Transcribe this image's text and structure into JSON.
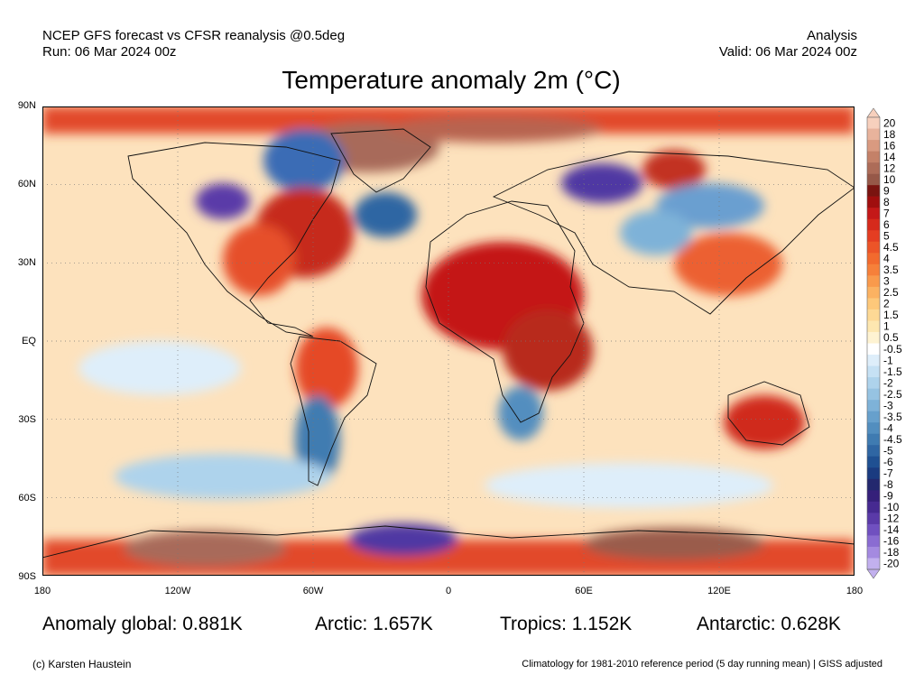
{
  "header": {
    "model_line": "NCEP GFS forecast vs CFSR reanalysis @0.5deg",
    "run_line": "Run: 06 Mar 2024 00z",
    "type_line": "Analysis",
    "valid_line": "Valid: 06 Mar 2024 00z"
  },
  "title": "Temperature anomaly 2m (°C)",
  "axes": {
    "lat_labels": [
      "90N",
      "60N",
      "30N",
      "EQ",
      "30S",
      "60S",
      "90S"
    ],
    "lon_labels": [
      "180",
      "120W",
      "60W",
      "0",
      "60E",
      "120E",
      "180"
    ]
  },
  "colorbar": {
    "levels": [
      "20",
      "18",
      "16",
      "14",
      "12",
      "10",
      "9",
      "8",
      "7",
      "6",
      "5",
      "4.5",
      "4",
      "3.5",
      "3",
      "2.5",
      "2",
      "1.5",
      "1",
      "0.5",
      "-0.5",
      "-1",
      "-1.5",
      "-2",
      "-2.5",
      "-3",
      "-3.5",
      "-4",
      "-4.5",
      "-5",
      "-6",
      "-7",
      "-8",
      "-9",
      "-10",
      "-12",
      "-14",
      "-16",
      "-18",
      "-20"
    ],
    "colors": [
      "#f7d0bd",
      "#e8b39c",
      "#d99a80",
      "#c48168",
      "#ad6c58",
      "#965848",
      "#7a1410",
      "#a00e0e",
      "#c41818",
      "#d62a1c",
      "#e43d22",
      "#ec5428",
      "#f26a2e",
      "#f6803a",
      "#f99a4c",
      "#fbb262",
      "#fdc87a",
      "#fdd995",
      "#fde7b0",
      "#fef3d2",
      "#ffffff",
      "#deeefa",
      "#c6e1f4",
      "#aed3ec",
      "#96c3e2",
      "#7eb2d8",
      "#67a0cc",
      "#528ebf",
      "#3f7bb1",
      "#2f66a3",
      "#1f5092",
      "#1a3b80",
      "#23286e",
      "#35207a",
      "#462a91",
      "#5a3aa8",
      "#7050c0",
      "#8a6cd2",
      "#a48ae0",
      "#c2b0ee"
    ]
  },
  "stats": {
    "global": "Anomaly global: 0.881K",
    "arctic": "Arctic: 1.657K",
    "tropics": "Tropics: 1.152K",
    "antarctic": "Antarctic: 0.628K"
  },
  "footer": {
    "credit": "(c) Karsten Haustein",
    "climatology": "Climatology for 1981-2010 reference period (5 day running mean) | GISS adjusted"
  }
}
